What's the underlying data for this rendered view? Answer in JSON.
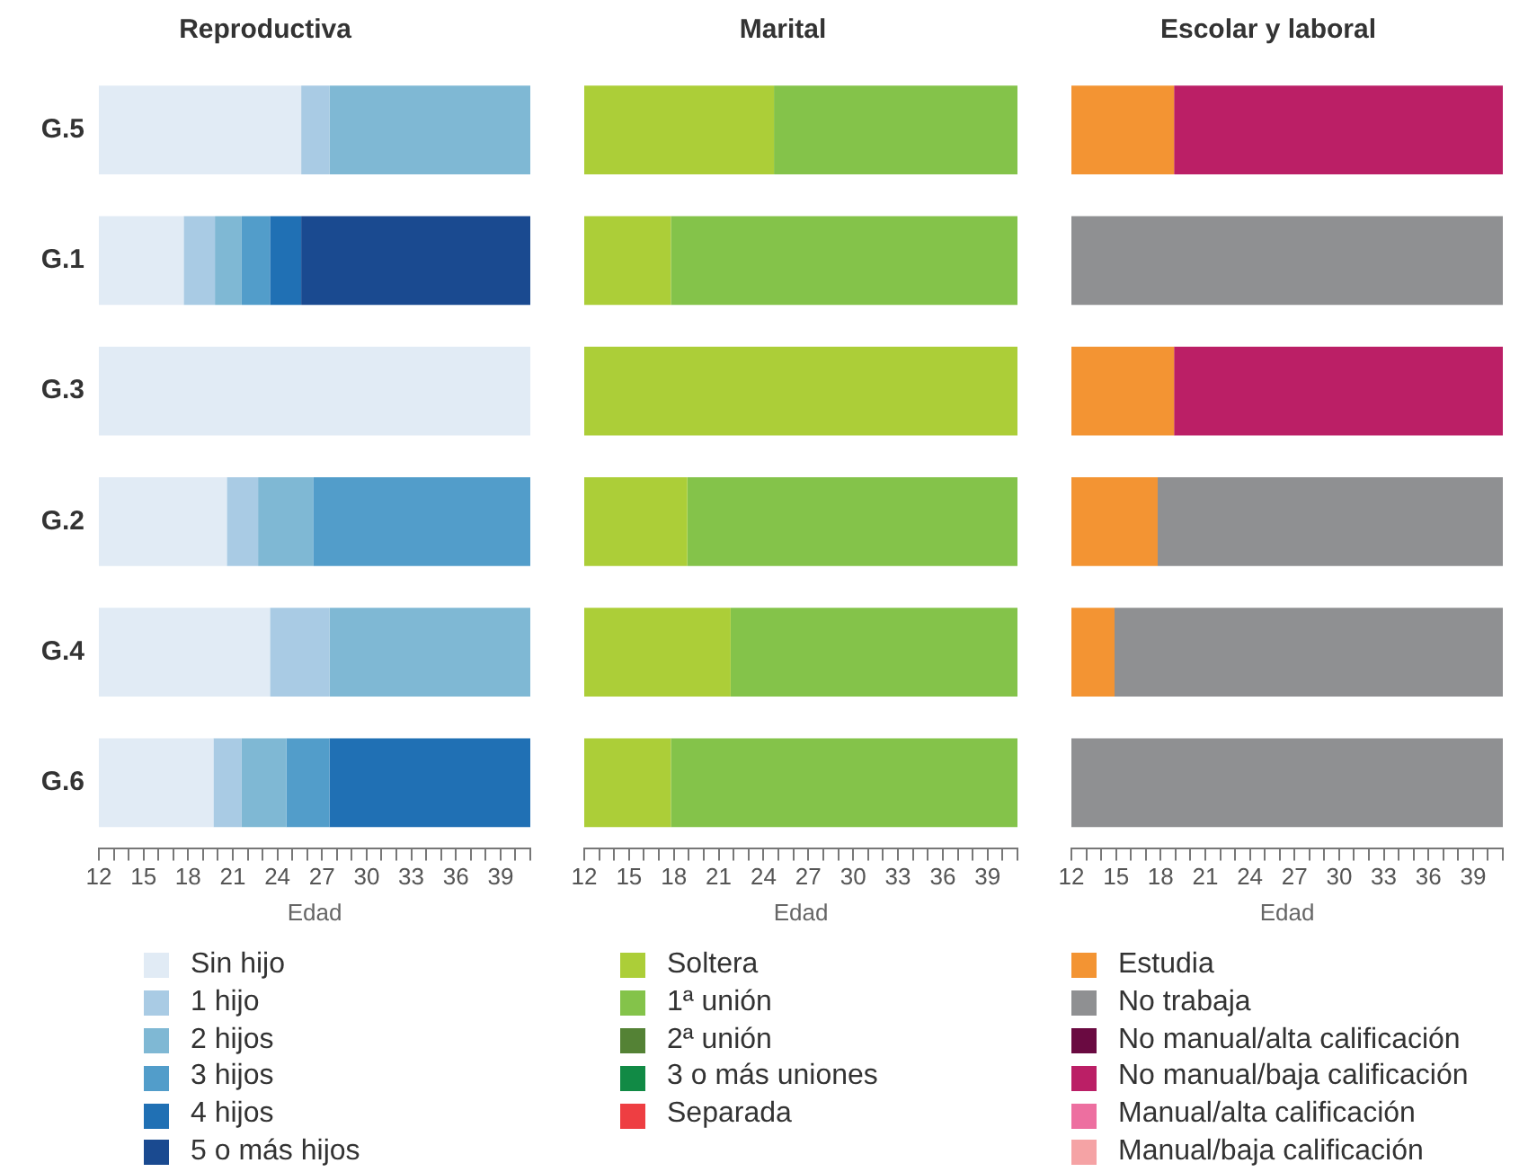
{
  "chart_data": [
    {
      "type": "bar",
      "orientation": "horizontal",
      "title": "Reproductiva",
      "xlabel": "Edad",
      "categories": [
        "G.5",
        "G.1",
        "G.3",
        "G.2",
        "G.4",
        "G.6"
      ],
      "xlim": [
        12,
        41
      ],
      "xticks": [
        12,
        {
          "value": 13,
          "label": null
        },
        {
          "value": 14,
          "label": null
        },
        15,
        {
          "value": 16,
          "label": null
        },
        {
          "value": 17,
          "label": null
        },
        18,
        {
          "value": 19,
          "label": null
        },
        {
          "value": 20,
          "label": null
        },
        21,
        {
          "value": 22,
          "label": null
        },
        {
          "value": 23,
          "label": null
        },
        24,
        {
          "value": 25,
          "label": null
        },
        {
          "value": 26,
          "label": null
        },
        27,
        {
          "value": 28,
          "label": null
        },
        {
          "value": 29,
          "label": null
        },
        30,
        {
          "value": 31,
          "label": null
        },
        {
          "value": 32,
          "label": null
        },
        33,
        {
          "value": 34,
          "label": null
        },
        {
          "value": 35,
          "label": null
        },
        36,
        {
          "value": 37,
          "label": null
        },
        {
          "value": 38,
          "label": null
        },
        39,
        {
          "value": 40,
          "label": null
        },
        {
          "value": 41,
          "label": null
        }
      ],
      "grid": false,
      "legend": "bottom",
      "series": [
        {
          "name": "Sin hijo",
          "color": "#e1ebf5",
          "base": [
            12,
            12,
            12,
            12,
            12,
            12
          ],
          "values": [
            13.6,
            5.7,
            29,
            8.6,
            11.5,
            7.7
          ]
        },
        {
          "name": "1 hijo",
          "color": "#a9cbe4",
          "base": [
            25.6,
            17.7,
            null,
            20.6,
            23.5,
            19.7
          ],
          "values": [
            1.9,
            2.1,
            null,
            2.1,
            4,
            1.9
          ]
        },
        {
          "name": "2 hijos",
          "color": "#7fb8d4",
          "base": [
            27.5,
            19.8,
            null,
            22.7,
            27.5,
            21.6
          ],
          "values": [
            13.5,
            1.8,
            null,
            3.7,
            13.5,
            3
          ]
        },
        {
          "name": "3 hijos",
          "color": "#529dca",
          "base": [
            null,
            21.6,
            null,
            26.4,
            null,
            24.6
          ],
          "values": [
            null,
            1.9,
            null,
            14.6,
            null,
            2.9
          ]
        },
        {
          "name": "4 hijos",
          "color": "#2070b4",
          "base": [
            null,
            23.5,
            null,
            null,
            null,
            27.5
          ],
          "values": [
            null,
            2.1,
            null,
            null,
            null,
            13.5
          ]
        },
        {
          "name": "5 o más hijos",
          "color": "#1a4a90",
          "base": [
            null,
            25.6,
            null,
            null,
            null,
            null
          ],
          "values": [
            null,
            15.4,
            null,
            null,
            null,
            null
          ]
        }
      ]
    },
    {
      "type": "bar",
      "orientation": "horizontal",
      "title": "Marital",
      "xlabel": "Edad",
      "categories": [
        null,
        null,
        null,
        null,
        null,
        null
      ],
      "xlim": [
        12,
        41
      ],
      "tick_labels": "x",
      "xticks": [
        12,
        {
          "value": 13,
          "label": null
        },
        {
          "value": 14,
          "label": null
        },
        15,
        {
          "value": 16,
          "label": null
        },
        {
          "value": 17,
          "label": null
        },
        18,
        {
          "value": 19,
          "label": null
        },
        {
          "value": 20,
          "label": null
        },
        21,
        {
          "value": 22,
          "label": null
        },
        {
          "value": 23,
          "label": null
        },
        24,
        {
          "value": 25,
          "label": null
        },
        {
          "value": 26,
          "label": null
        },
        27,
        {
          "value": 28,
          "label": null
        },
        {
          "value": 29,
          "label": null
        },
        30,
        {
          "value": 31,
          "label": null
        },
        {
          "value": 32,
          "label": null
        },
        33,
        {
          "value": 34,
          "label": null
        },
        {
          "value": 35,
          "label": null
        },
        36,
        {
          "value": 37,
          "label": null
        },
        {
          "value": 38,
          "label": null
        },
        39,
        {
          "value": 40,
          "label": null
        },
        {
          "value": 41,
          "label": null
        }
      ],
      "grid": false,
      "legend": "bottom",
      "series": [
        {
          "name": "Soltera",
          "color": "#acce38",
          "base": [
            12,
            12,
            12,
            12,
            12,
            12
          ],
          "values": [
            12.7,
            5.8,
            29,
            6.9,
            9.8,
            5.8
          ]
        },
        {
          "name": "1ª unión",
          "color": "#84c34a",
          "base": [
            24.7,
            17.8,
            null,
            18.9,
            21.8,
            17.8
          ],
          "values": [
            16.3,
            23.2,
            null,
            22.1,
            19.2,
            23.2
          ]
        },
        {
          "name": "2ª unión",
          "color": "#548235",
          "base": [
            null,
            null,
            null,
            null,
            null,
            null
          ],
          "values": [
            null,
            null,
            null,
            null,
            null,
            null
          ]
        },
        {
          "name": "3 o más uniones",
          "color": "#118a45",
          "base": [
            null,
            null,
            null,
            null,
            null,
            null
          ],
          "values": [
            null,
            null,
            null,
            null,
            null,
            null
          ]
        },
        {
          "name": "Separada",
          "color": "#ee3e42",
          "base": [
            null,
            null,
            null,
            null,
            null,
            null
          ],
          "values": [
            null,
            null,
            null,
            null,
            null,
            null
          ]
        }
      ]
    },
    {
      "type": "bar",
      "orientation": "horizontal",
      "title": "Escolar y laboral",
      "xlabel": "Edad",
      "categories": [
        null,
        null,
        null,
        null,
        null,
        null
      ],
      "xlim": [
        12,
        41
      ],
      "tick_labels": "x",
      "xticks": [
        12,
        {
          "value": 13,
          "label": null
        },
        {
          "value": 14,
          "label": null
        },
        15,
        {
          "value": 16,
          "label": null
        },
        {
          "value": 17,
          "label": null
        },
        18,
        {
          "value": 19,
          "label": null
        },
        {
          "value": 20,
          "label": null
        },
        21,
        {
          "value": 22,
          "label": null
        },
        {
          "value": 23,
          "label": null
        },
        24,
        {
          "value": 25,
          "label": null
        },
        {
          "value": 26,
          "label": null
        },
        27,
        {
          "value": 28,
          "label": null
        },
        {
          "value": 29,
          "label": null
        },
        30,
        {
          "value": 31,
          "label": null
        },
        {
          "value": 32,
          "label": null
        },
        33,
        {
          "value": 34,
          "label": null
        },
        {
          "value": 35,
          "label": null
        },
        36,
        {
          "value": 37,
          "label": null
        },
        {
          "value": 38,
          "label": null
        },
        39,
        {
          "value": 40,
          "label": null
        },
        {
          "value": 41,
          "label": null
        }
      ],
      "grid": false,
      "legend": "bottom",
      "series": [
        {
          "name": "Estudia",
          "color": "#f39433",
          "base": [
            12,
            null,
            12,
            12,
            12,
            null
          ],
          "values": [
            6.9,
            null,
            6.9,
            5.8,
            2.9,
            null
          ]
        },
        {
          "name": "No trabaja",
          "color": "#8f9092",
          "base": [
            null,
            12,
            null,
            17.8,
            14.9,
            12
          ],
          "values": [
            null,
            29,
            null,
            23.2,
            26.1,
            29
          ]
        },
        {
          "name": "No manual/alta calificación",
          "color": "#6a0a41",
          "base": [
            null,
            null,
            null,
            null,
            null,
            null
          ],
          "values": [
            null,
            null,
            null,
            null,
            null,
            null
          ]
        },
        {
          "name": "No manual/baja calificación",
          "color": "#bb1f66",
          "base": [
            18.9,
            null,
            18.9,
            null,
            null,
            null
          ],
          "values": [
            22.1,
            null,
            22.1,
            null,
            null,
            null
          ]
        },
        {
          "name": "Manual/alta calificación",
          "color": "#ed6fa0",
          "base": [
            null,
            null,
            null,
            null,
            null,
            null
          ],
          "values": [
            null,
            null,
            null,
            null,
            null,
            null
          ]
        },
        {
          "name": "Manual/baja calificación",
          "color": "#f5a3a5",
          "base": [
            null,
            null,
            null,
            null,
            null,
            null
          ],
          "values": [
            null,
            null,
            null,
            null,
            null,
            null
          ]
        }
      ]
    }
  ]
}
